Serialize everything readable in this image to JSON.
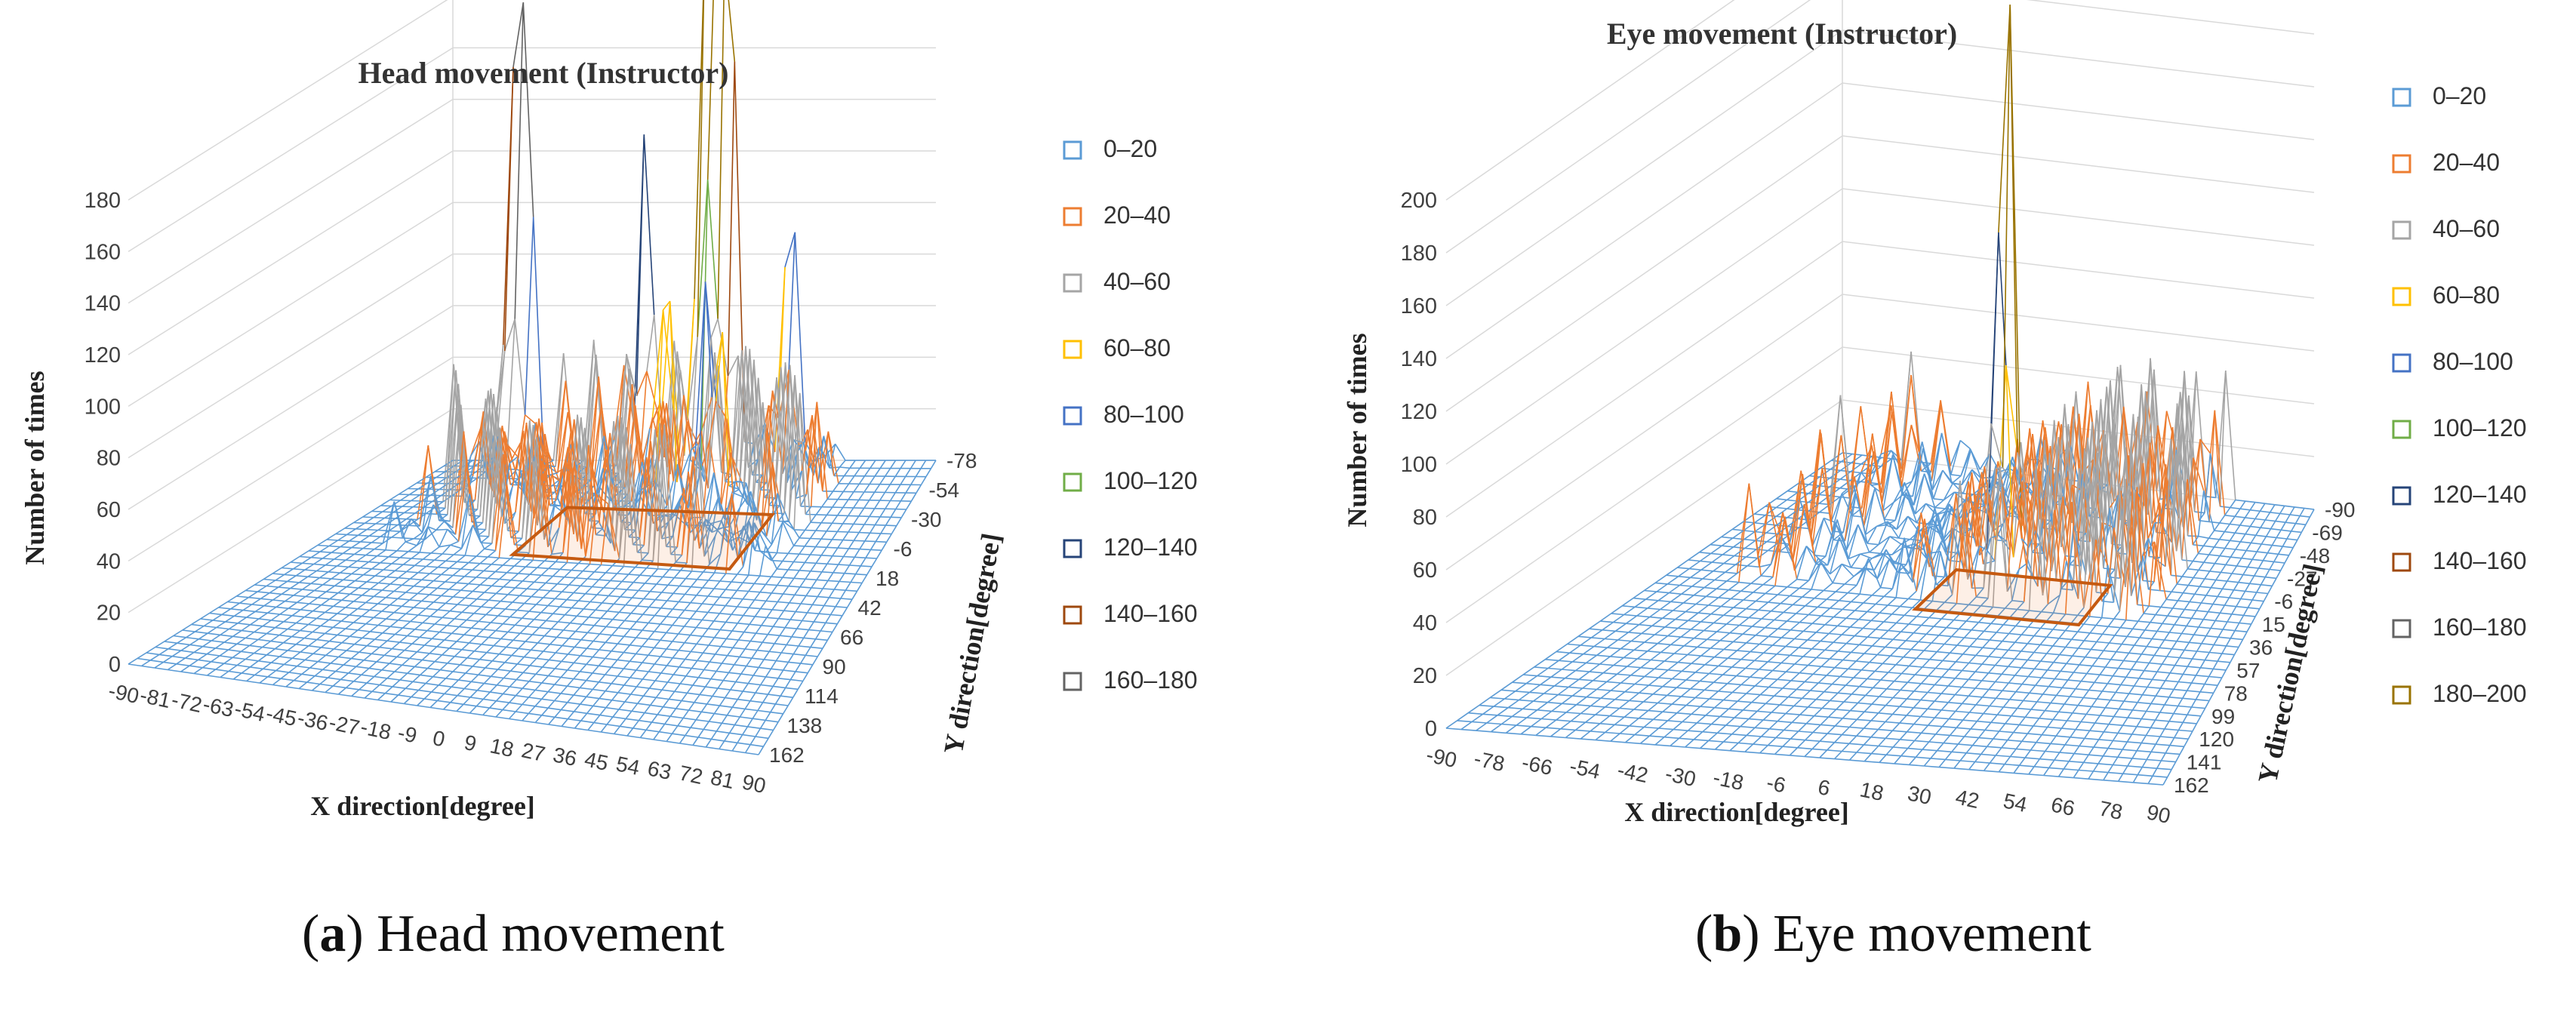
{
  "colors": {
    "s0": "#5b9bd5",
    "s1": "#ed7d31",
    "s2": "#a5a5a5",
    "s3": "#ffc000",
    "s4": "#4472c4",
    "s5": "#70ad47",
    "s6": "#264478",
    "s7": "#9e480e",
    "s8": "#636363",
    "s9": "#997300",
    "floor_rect": "#c55a11",
    "axis_text": "#404040"
  },
  "chart_data": [
    {
      "type": "surface3d",
      "id": "a",
      "title": "Head movement (Instructor)",
      "xlabel": "X direction[degree]",
      "ylabel": "Y direction[degree]",
      "zlabel": "Number of times",
      "z_ticks": [
        "0",
        "20",
        "40",
        "60",
        "80",
        "100",
        "120",
        "140",
        "160",
        "180"
      ],
      "zlim": [
        0,
        180
      ],
      "x_ticks": [
        "-90",
        "-81",
        "-72",
        "-63",
        "-54",
        "-45",
        "-36",
        "-27",
        "-18",
        "-9",
        "0",
        "9",
        "18",
        "27",
        "36",
        "45",
        "54",
        "63",
        "72",
        "81",
        "90"
      ],
      "y_ticks": [
        "-78",
        "-54",
        "-30",
        "-6",
        "18",
        "42",
        "66",
        "90",
        "114",
        "138",
        "162"
      ],
      "legend": [
        "0-20",
        "20-40",
        "40-60",
        "60-80",
        "80-100",
        "100-120",
        "120-140",
        "140-160",
        "160-180"
      ],
      "peaks": [
        {
          "x": -63,
          "y": -78,
          "z": 165
        },
        {
          "x": -68,
          "y": -78,
          "z": 125
        },
        {
          "x": 8,
          "y": -78,
          "z": 185
        },
        {
          "x": 13,
          "y": -78,
          "z": 178
        },
        {
          "x": 3,
          "y": -78,
          "z": 150
        },
        {
          "x": 36,
          "y": -78,
          "z": 108
        },
        {
          "x": -18,
          "y": -78,
          "z": 100
        },
        {
          "x": 3,
          "y": -40,
          "z": 88
        },
        {
          "x": 20,
          "y": -40,
          "z": 82
        }
      ],
      "highlight_region": {
        "x": [
          -27,
          45
        ],
        "y": [
          -30,
          18
        ]
      }
    },
    {
      "type": "surface3d",
      "id": "b",
      "title": "Eye movement (Instructor)",
      "xlabel": "X direction[degree]",
      "ylabel": "Y direction[degree]",
      "zlabel": "Number of times",
      "z_ticks": [
        "0",
        "20",
        "40",
        "60",
        "80",
        "100",
        "120",
        "140",
        "160",
        "180",
        "200"
      ],
      "zlim": [
        0,
        200
      ],
      "x_ticks": [
        "-90",
        "-78",
        "-66",
        "-54",
        "-42",
        "-30",
        "-18",
        "-6",
        "6",
        "18",
        "30",
        "42",
        "54",
        "66",
        "78",
        "90"
      ],
      "y_ticks": [
        "-90",
        "-69",
        "-48",
        "-27",
        "-6",
        "15",
        "36",
        "57",
        "78",
        "99",
        "120",
        "141",
        "162"
      ],
      "legend": [
        "0-20",
        "20-40",
        "40-60",
        "60-80",
        "80-100",
        "100-120",
        "120-140",
        "140-160",
        "160-180",
        "180-200"
      ],
      "peaks": [
        {
          "x": 6,
          "y": -6,
          "z": 212
        }
      ],
      "highlight_region": {
        "x": [
          -10,
          40
        ],
        "y": [
          -6,
          30
        ]
      }
    }
  ],
  "captions": [
    {
      "letter": "a",
      "text": " Head movement"
    },
    {
      "letter": "b",
      "text": " Eye movement"
    }
  ]
}
